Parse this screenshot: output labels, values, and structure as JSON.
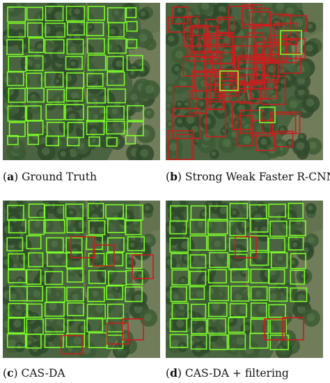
{
  "panels": [
    {
      "id": "a",
      "letter": "a",
      "caption": " Ground Truth"
    },
    {
      "id": "b",
      "letter": "b",
      "caption": " Strong Weak Faster R-CNN"
    },
    {
      "id": "c",
      "letter": "c",
      "caption": " CAS-DA"
    },
    {
      "id": "d",
      "letter": "d",
      "caption": " CAS-DA + filtering"
    }
  ],
  "colors": {
    "green_box": "#7cfc2a",
    "red_box": "#c81e1e",
    "canopy_dark": "#2f4a2c",
    "ground": "#8a8a6a"
  }
}
